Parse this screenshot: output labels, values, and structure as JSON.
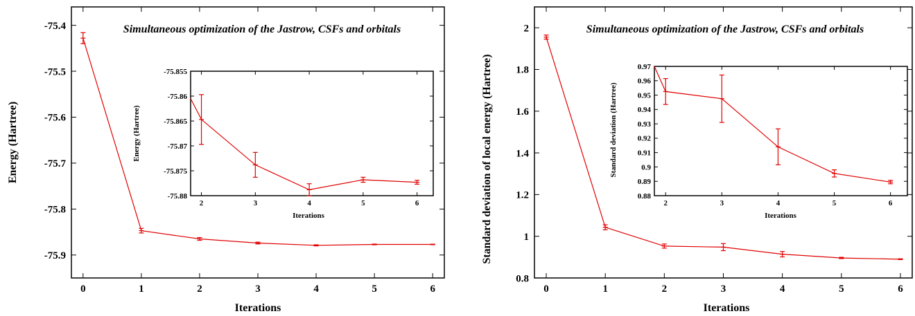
{
  "chart_data": [
    {
      "type": "line",
      "title": "Simultaneous optimization of the Jastrow, CSFs and orbitals",
      "xlabel": "Iterations",
      "ylabel": "Energy (Hartree)",
      "xlim": [
        -0.2,
        6.2
      ],
      "ylim": [
        -75.95,
        -75.36
      ],
      "x_ticks": [
        0,
        1,
        2,
        3,
        4,
        5,
        6
      ],
      "y_ticks": [
        -75.4,
        -75.5,
        -75.6,
        -75.7,
        -75.8,
        -75.9
      ],
      "series": [
        {
          "x": [
            0,
            1,
            2,
            3,
            4,
            5,
            6
          ],
          "y": [
            -75.428,
            -75.847,
            -75.865,
            -75.874,
            -75.879,
            -75.877,
            -75.877
          ],
          "err": [
            0.012,
            0.005,
            0.003,
            0.002,
            0.0012,
            0.0008,
            0.0006
          ]
        }
      ],
      "inset": {
        "type": "line",
        "xlabel": "Iterations",
        "ylabel": "Energy (Hartree)",
        "xlim": [
          1.8,
          6.3
        ],
        "ylim": [
          -75.88,
          -75.855
        ],
        "x_ticks": [
          2,
          3,
          4,
          5,
          6
        ],
        "y_ticks": [
          -75.855,
          -75.86,
          -75.865,
          -75.87,
          -75.875,
          -75.88
        ],
        "series": [
          {
            "x": [
              1.8,
              2,
              3,
              4,
              5,
              6
            ],
            "y": [
              -75.8605,
              -75.8647,
              -75.8738,
              -75.8788,
              -75.8768,
              -75.8773
            ],
            "err": [
              0,
              0.005,
              0.0025,
              0.0012,
              0.0005,
              0.0004
            ]
          }
        ]
      }
    },
    {
      "type": "line",
      "title": "Simultaneous optimization of the Jastrow, CSFs and orbitals",
      "xlabel": "Iterations",
      "ylabel": "Standard deviation of local energy (Hartree)",
      "xlim": [
        -0.2,
        6.2
      ],
      "ylim": [
        0.8,
        2.1
      ],
      "x_ticks": [
        0,
        1,
        2,
        3,
        4,
        5,
        6
      ],
      "y_ticks": [
        0.8,
        1,
        1.2,
        1.4,
        1.6,
        1.8,
        2
      ],
      "series": [
        {
          "x": [
            0,
            1,
            2,
            3,
            4,
            5,
            6
          ],
          "y": [
            1.955,
            1.043,
            0.953,
            0.948,
            0.914,
            0.896,
            0.89
          ],
          "err": [
            0.01,
            0.012,
            0.01,
            0.017,
            0.013,
            0.003,
            0.002
          ]
        }
      ],
      "inset": {
        "type": "line",
        "xlabel": "Iterations",
        "ylabel": "Standard deviation (Hartree)",
        "xlim": [
          1.8,
          6.3
        ],
        "ylim": [
          0.88,
          0.97
        ],
        "x_ticks": [
          2,
          3,
          4,
          5,
          6
        ],
        "y_ticks": [
          0.97,
          0.96,
          0.95,
          0.94,
          0.93,
          0.92,
          0.91,
          0.9,
          0.89,
          0.88
        ],
        "series": [
          {
            "x": [
              1.8,
              2,
              3,
              4,
              5,
              6
            ],
            "y": [
              0.97,
              0.9525,
              0.9475,
              0.914,
              0.8955,
              0.8895
            ],
            "err": [
              0,
              0.009,
              0.0165,
              0.0125,
              0.0025,
              0.0012
            ]
          }
        ]
      }
    }
  ]
}
